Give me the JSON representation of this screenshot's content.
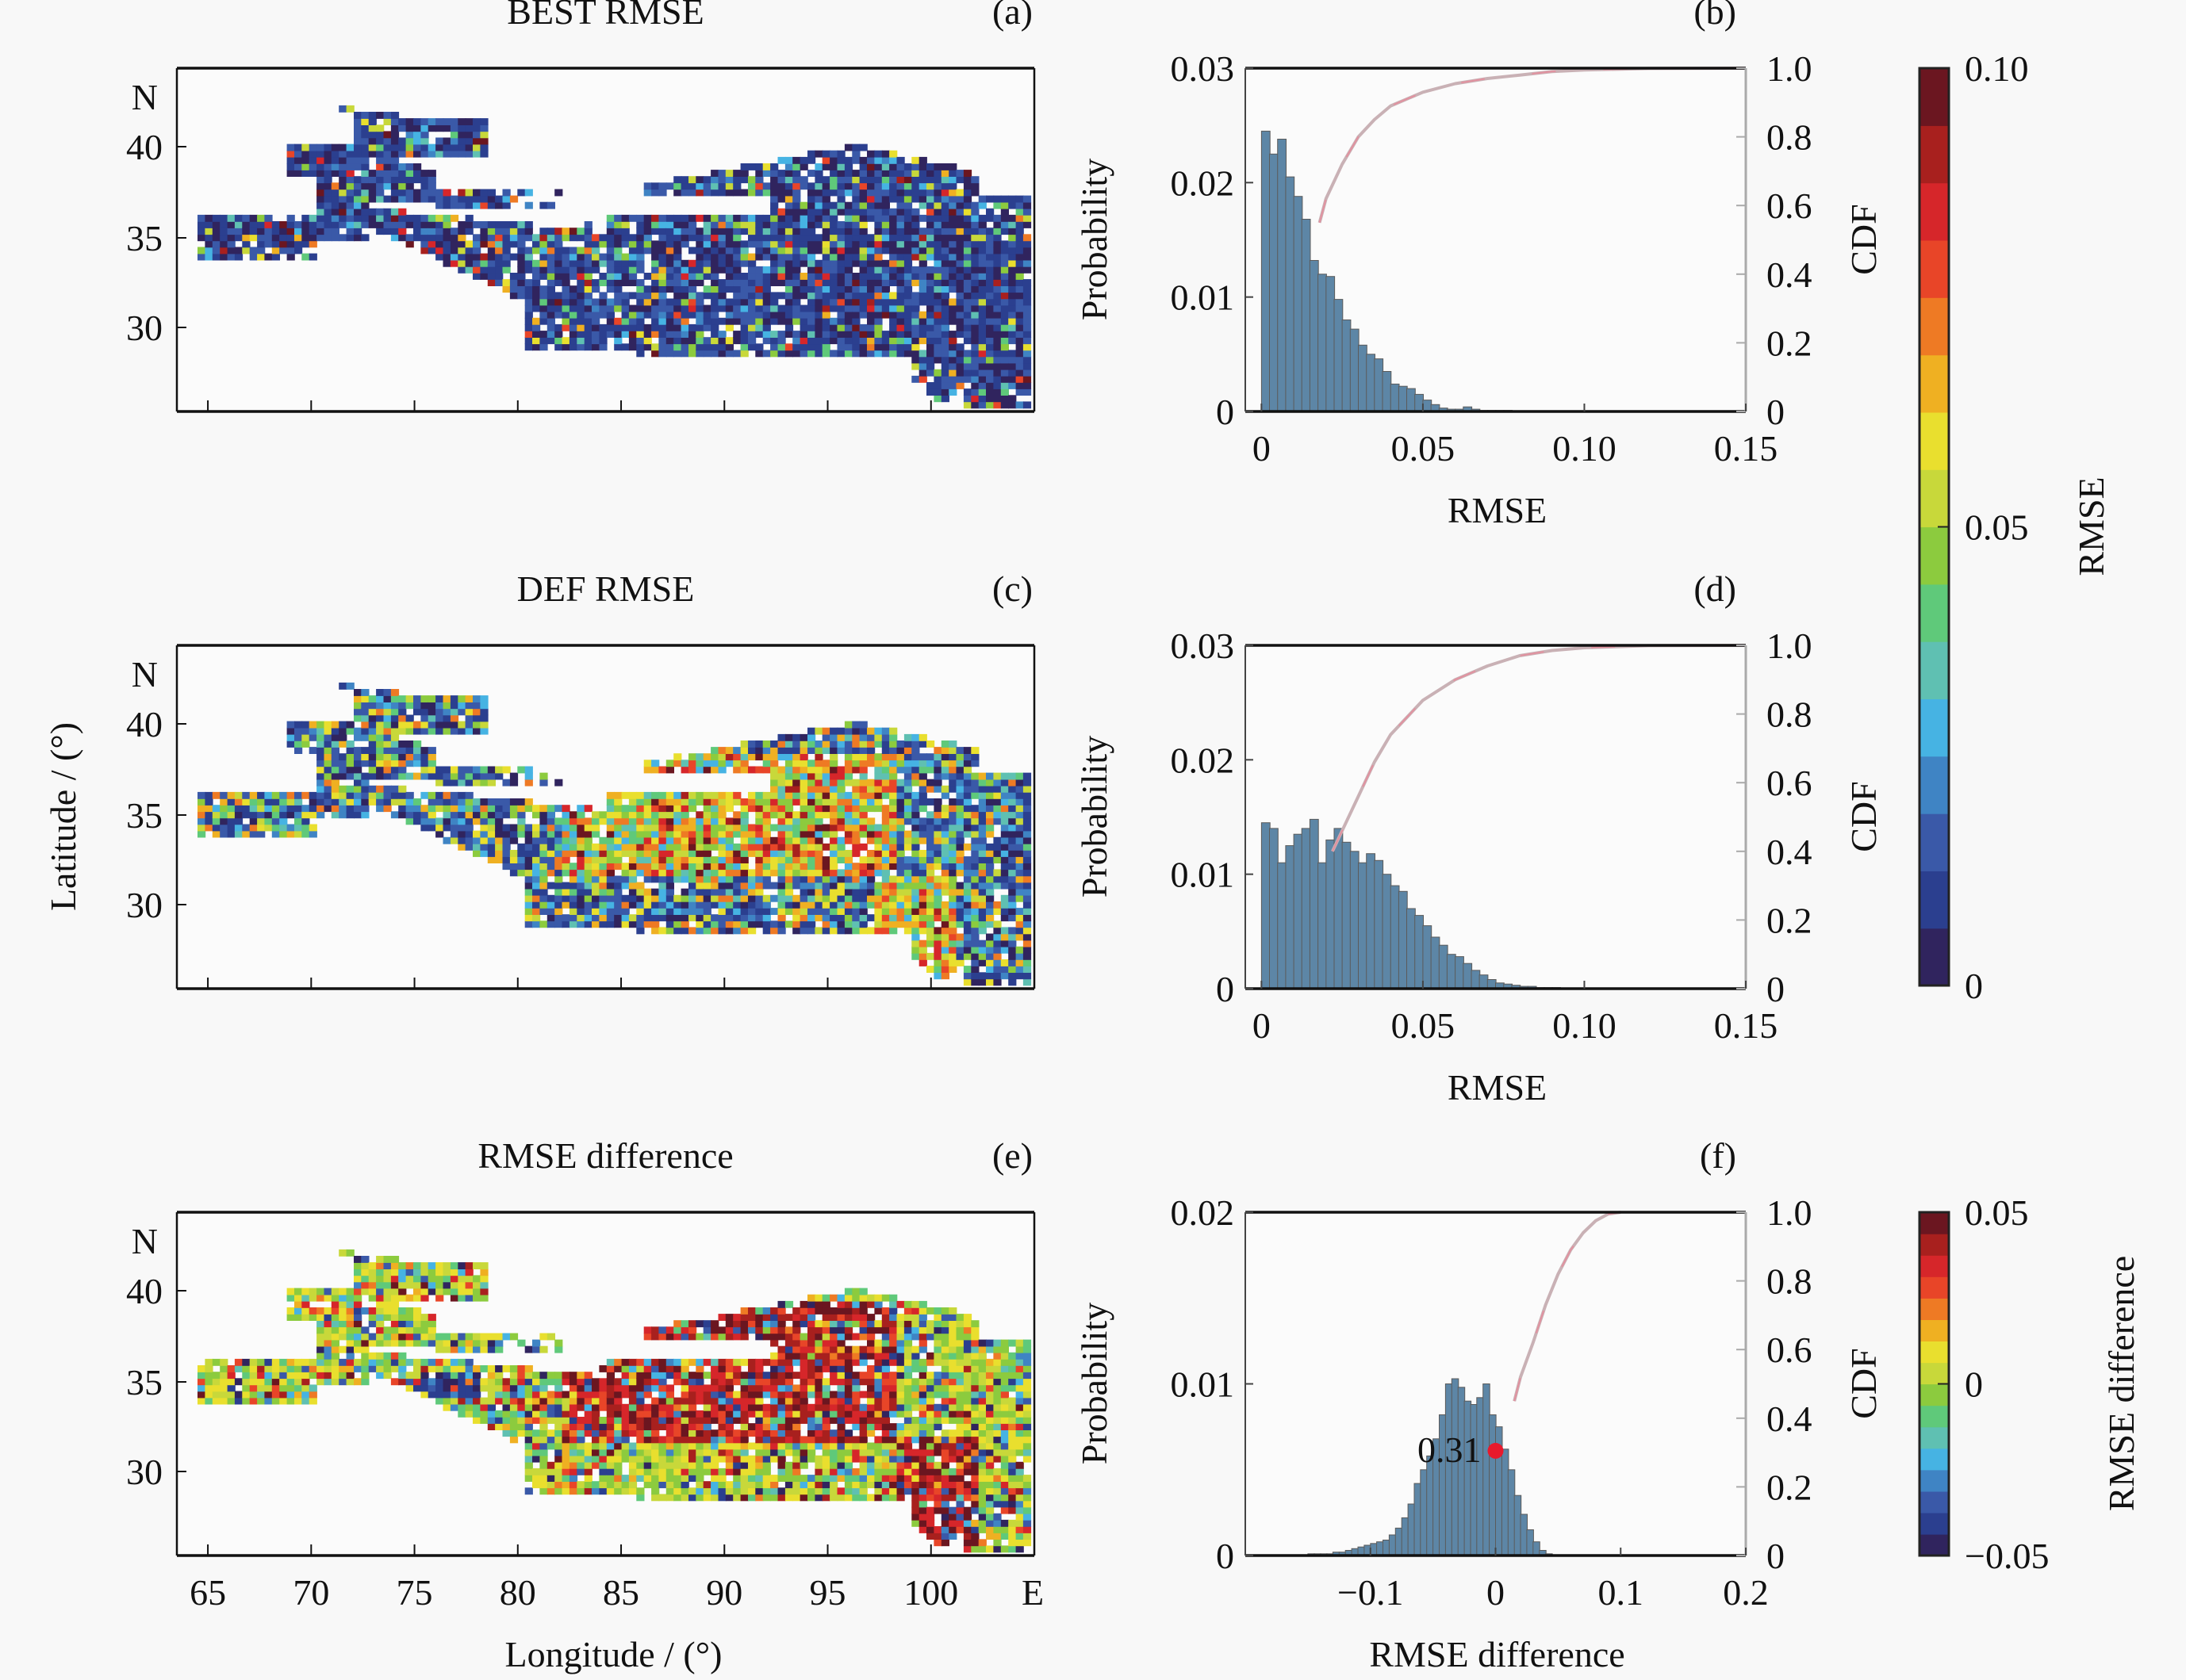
{
  "chart_data": [
    {
      "panel": "(a)",
      "type": "heatmap",
      "title": "BEST RMSE",
      "xlim": [
        63.5,
        105
      ],
      "ylim": [
        25,
        44
      ],
      "x_ticks": [
        65,
        70,
        75,
        80,
        85,
        90,
        95,
        100
      ],
      "y_ticks": [
        30,
        35,
        40
      ],
      "y_tick_labels": [
        "30",
        "35",
        "40"
      ],
      "y_unit_label": "N",
      "colorbar": "rmse",
      "dominant_level": "low"
    },
    {
      "panel": "(b)",
      "type": "bar",
      "subtype": "histogram+cdf",
      "xlabel": "RMSE",
      "ylabel": "Probability",
      "y2label": "CDF",
      "xlim": [
        -0.005,
        0.15
      ],
      "ylim": [
        0,
        0.03
      ],
      "y2lim": [
        0,
        1.0
      ],
      "x_tick_labels": [
        "0",
        "0.05",
        "0.10",
        "0.15"
      ],
      "x_ticks": [
        0,
        0.05,
        0.1,
        0.15
      ],
      "y_tick_labels": [
        "0",
        "0.01",
        "0.02",
        "0.03"
      ],
      "y_ticks": [
        0,
        0.01,
        0.02,
        0.03
      ],
      "y2_tick_labels": [
        "0",
        "0.2",
        "0.4",
        "0.6",
        "0.8",
        "1.0"
      ],
      "y2_ticks": [
        0,
        0.2,
        0.4,
        0.6,
        0.8,
        1.0
      ],
      "bin_width": 0.0025,
      "bin_start": 0,
      "values": [
        0.0245,
        0.0225,
        0.0238,
        0.0205,
        0.0188,
        0.0168,
        0.0132,
        0.012,
        0.0118,
        0.0098,
        0.008,
        0.0072,
        0.0058,
        0.005,
        0.0046,
        0.0035,
        0.0024,
        0.0022,
        0.002,
        0.0015,
        0.001,
        0.0006,
        0.0003,
        0.0002,
        0.0002,
        0.0004,
        0.0002,
        0.0001,
        0.0001,
        0.0001,
        0.0001,
        0.0,
        0.0,
        0.0,
        0.0,
        0.0,
        0.0,
        0.0,
        0.0,
        0.0
      ],
      "cdf_x": [
        0.018,
        0.02,
        0.025,
        0.03,
        0.035,
        0.04,
        0.05,
        0.06,
        0.07,
        0.08,
        0.09,
        0.1,
        0.12,
        0.15
      ],
      "cdf_y": [
        0.55,
        0.62,
        0.72,
        0.8,
        0.85,
        0.89,
        0.93,
        0.955,
        0.97,
        0.98,
        0.99,
        0.995,
        0.999,
        1.0
      ]
    },
    {
      "panel": "(c)",
      "type": "heatmap",
      "title": "DEF RMSE",
      "xlim": [
        63.5,
        105
      ],
      "ylim": [
        25,
        44
      ],
      "x_ticks": [
        65,
        70,
        75,
        80,
        85,
        90,
        95,
        100
      ],
      "y_ticks": [
        30,
        35,
        40
      ],
      "y_tick_labels": [
        "30",
        "35",
        "40"
      ],
      "y_unit_label": "N",
      "ylabel": "Latitude / (°)",
      "colorbar": "rmse",
      "dominant_level": "mixed"
    },
    {
      "panel": "(d)",
      "type": "bar",
      "subtype": "histogram+cdf",
      "xlabel": "RMSE",
      "ylabel": "Probability",
      "y2label": "CDF",
      "xlim": [
        -0.005,
        0.15
      ],
      "ylim": [
        0,
        0.03
      ],
      "y2lim": [
        0,
        1.0
      ],
      "x_tick_labels": [
        "0",
        "0.05",
        "0.10",
        "0.15"
      ],
      "x_ticks": [
        0,
        0.05,
        0.1,
        0.15
      ],
      "y_tick_labels": [
        "0",
        "0.01",
        "0.02",
        "0.03"
      ],
      "y_ticks": [
        0,
        0.01,
        0.02,
        0.03
      ],
      "y2_tick_labels": [
        "0",
        "0.2",
        "0.4",
        "0.6",
        "0.8",
        "1.0"
      ],
      "y2_ticks": [
        0,
        0.2,
        0.4,
        0.6,
        0.8,
        1.0
      ],
      "bin_width": 0.0025,
      "bin_start": 0,
      "values": [
        0.0145,
        0.014,
        0.011,
        0.0125,
        0.0135,
        0.014,
        0.0148,
        0.011,
        0.013,
        0.014,
        0.0128,
        0.012,
        0.011,
        0.0118,
        0.0112,
        0.01,
        0.009,
        0.0085,
        0.007,
        0.0064,
        0.0055,
        0.0045,
        0.0038,
        0.003,
        0.0028,
        0.0022,
        0.0016,
        0.0012,
        0.0008,
        0.0005,
        0.0004,
        0.0003,
        0.0002,
        0.0002,
        0.0001,
        0.0001,
        0.0001,
        0.0,
        0.0,
        0.0
      ],
      "cdf_x": [
        0.022,
        0.025,
        0.03,
        0.035,
        0.04,
        0.05,
        0.06,
        0.07,
        0.08,
        0.09,
        0.1,
        0.12,
        0.15
      ],
      "cdf_y": [
        0.4,
        0.46,
        0.56,
        0.66,
        0.74,
        0.84,
        0.9,
        0.94,
        0.97,
        0.985,
        0.993,
        0.999,
        1.0
      ]
    },
    {
      "panel": "(e)",
      "type": "heatmap",
      "title": "RMSE difference",
      "xlim": [
        63.5,
        105
      ],
      "ylim": [
        25,
        44
      ],
      "x_ticks": [
        65,
        70,
        75,
        80,
        85,
        90,
        95,
        100
      ],
      "x_tick_labels": [
        "65",
        "70",
        "75",
        "80",
        "85",
        "90",
        "95",
        "100"
      ],
      "x_unit_label": "E",
      "xlabel": "Longitude / (°)",
      "y_ticks": [
        30,
        35,
        40
      ],
      "y_tick_labels": [
        "30",
        "35",
        "40"
      ],
      "y_unit_label": "N",
      "colorbar": "diff",
      "dominant_level": "diverging"
    },
    {
      "panel": "(f)",
      "type": "bar",
      "subtype": "histogram+cdf",
      "xlabel": "RMSE difference",
      "ylabel": "Probability",
      "y2label": "CDF",
      "xlim": [
        -0.2,
        0.2
      ],
      "ylim": [
        0,
        0.02
      ],
      "y2lim": [
        0,
        1.0
      ],
      "x_tick_labels": [
        "−0.1",
        "0",
        "0.1",
        "0.2"
      ],
      "x_ticks": [
        -0.1,
        0,
        0.1,
        0.2
      ],
      "y_tick_labels": [
        "0",
        "0.01",
        "0.02"
      ],
      "y_ticks": [
        0,
        0.01,
        0.02
      ],
      "y2_tick_labels": [
        "0",
        "0.2",
        "0.4",
        "0.6",
        "0.8",
        "1.0"
      ],
      "y2_ticks": [
        0,
        0.2,
        0.4,
        0.6,
        0.8,
        1.0
      ],
      "bin_width": 0.005,
      "bin_start": -0.15,
      "values": [
        0.0001,
        0.0001,
        0.0001,
        0.0001,
        0.0002,
        0.0002,
        0.0003,
        0.0004,
        0.0005,
        0.0006,
        0.0007,
        0.0008,
        0.0009,
        0.0012,
        0.0016,
        0.0022,
        0.003,
        0.0042,
        0.005,
        0.0058,
        0.0068,
        0.0082,
        0.01,
        0.0103,
        0.0098,
        0.009,
        0.0088,
        0.0092,
        0.01,
        0.0082,
        0.0075,
        0.0062,
        0.005,
        0.0035,
        0.0024,
        0.0015,
        0.0008,
        0.0003,
        0.0001,
        0.0,
        0.0,
        0.0,
        0.0,
        0.0,
        0.0,
        0.0,
        0.0,
        0.0,
        0.0,
        0.0
      ],
      "cdf_x": [
        0.015,
        0.02,
        0.03,
        0.04,
        0.05,
        0.06,
        0.07,
        0.08,
        0.09,
        0.1
      ],
      "cdf_y": [
        0.45,
        0.52,
        0.62,
        0.73,
        0.82,
        0.89,
        0.94,
        0.975,
        0.995,
        1.0
      ],
      "annotation": {
        "text": "0.31",
        "x": 0.0,
        "y": 0.0061
      }
    }
  ],
  "colorbars": {
    "rmse": {
      "label": "RMSE",
      "range": [
        0,
        0.1
      ],
      "tick_values": [
        0,
        0.05,
        0.1
      ],
      "tick_labels": [
        "0",
        "0.05",
        "0.10"
      ]
    },
    "diff": {
      "label": "RMSE difference",
      "range": [
        -0.05,
        0.05
      ],
      "tick_values": [
        -0.05,
        0,
        0.05
      ],
      "tick_labels": [
        "−0.05",
        "0",
        "0.05"
      ]
    }
  },
  "colors": {
    "jet_stops": [
      "#30245e",
      "#2b3f8f",
      "#3a59a8",
      "#3f84c4",
      "#46b3e3",
      "#5fc0b2",
      "#5fc97a",
      "#8ccb3e",
      "#c8d83a",
      "#e9df2e",
      "#efb022",
      "#ee7a24",
      "#e84528",
      "#d6262a",
      "#a8201e",
      "#6b1620"
    ],
    "bar_fill": "#5d86a6",
    "bar_edge": "#5b5b5b",
    "cdf_line": "#c9b1b5",
    "cdf_highlight": "#e88a9a",
    "marker": "#e8192c",
    "axis": "#111111"
  }
}
